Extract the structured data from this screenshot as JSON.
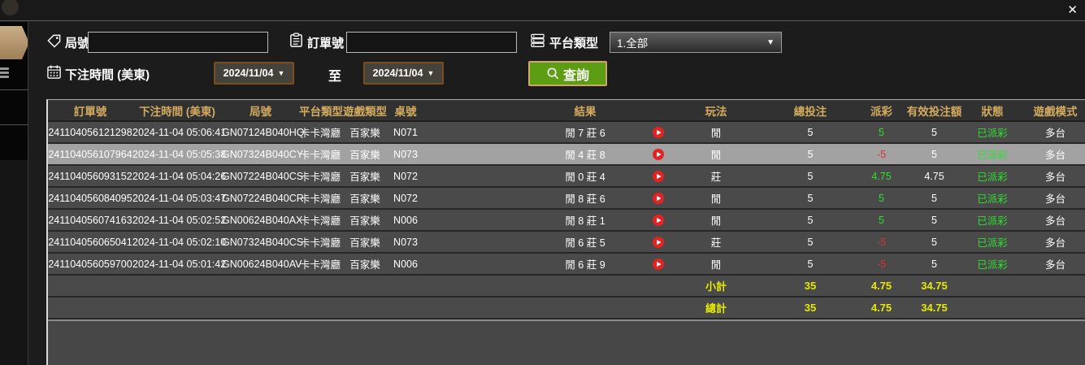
{
  "topbar": {
    "close_label": "✕"
  },
  "filters": {
    "round_label": "局號",
    "round_value": "",
    "order_label": "訂單號",
    "order_value": "",
    "platform_label": "平台類型",
    "platform_value": "1.全部",
    "time_label": "下注時間 (美東)",
    "date_from": "2024/11/04",
    "to_label": "至",
    "date_to": "2024/11/04",
    "search_label": "查詢",
    "dropdown_arrow": "▼"
  },
  "table": {
    "headers": [
      "訂單號",
      "下注時間 (美東)",
      "局號",
      "平台類型",
      "遊戲類型",
      "桌號",
      "結果",
      "玩法",
      "總投注",
      "派彩",
      "有效投注額",
      "狀態",
      "遊戲模式"
    ],
    "rows": [
      {
        "order": "241104056121298",
        "time": "2024-11-04 05:06:41",
        "round": "GN07124B040HQ",
        "platform": "卡卡灣廳",
        "game_type": "百家樂",
        "table_no": "N071",
        "result": "閒 7 莊 6",
        "play": "閒",
        "bet": "5",
        "payout": "5",
        "valid": "5",
        "status": "已派彩",
        "mode": "多台",
        "selected": false
      },
      {
        "order": "241104056107964",
        "time": "2024-11-04 05:05:38",
        "round": "GN07324B040CY",
        "platform": "卡卡灣廳",
        "game_type": "百家樂",
        "table_no": "N073",
        "result": "閒 4 莊 8",
        "play": "閒",
        "bet": "5",
        "payout": "-5",
        "valid": "5",
        "status": "已派彩",
        "mode": "多台",
        "selected": true
      },
      {
        "order": "241104056093152",
        "time": "2024-11-04 05:04:26",
        "round": "GN07224B040CS",
        "platform": "卡卡灣廳",
        "game_type": "百家樂",
        "table_no": "N072",
        "result": "閒 0 莊 4",
        "play": "莊",
        "bet": "5",
        "payout": "4.75",
        "valid": "4.75",
        "status": "已派彩",
        "mode": "多台",
        "selected": false
      },
      {
        "order": "241104056084095",
        "time": "2024-11-04 05:03:47",
        "round": "GN07224B040CR",
        "platform": "卡卡灣廳",
        "game_type": "百家樂",
        "table_no": "N072",
        "result": "閒 8 莊 6",
        "play": "閒",
        "bet": "5",
        "payout": "5",
        "valid": "5",
        "status": "已派彩",
        "mode": "多台",
        "selected": false
      },
      {
        "order": "241104056074163",
        "time": "2024-11-04 05:02:52",
        "round": "GN00624B040AX",
        "platform": "卡卡灣廳",
        "game_type": "百家樂",
        "table_no": "N006",
        "result": "閒 8 莊 1",
        "play": "閒",
        "bet": "5",
        "payout": "5",
        "valid": "5",
        "status": "已派彩",
        "mode": "多台",
        "selected": false
      },
      {
        "order": "241104056065041",
        "time": "2024-11-04 05:02:10",
        "round": "GN07324B040CS",
        "platform": "卡卡灣廳",
        "game_type": "百家樂",
        "table_no": "N073",
        "result": "閒 6 莊 5",
        "play": "莊",
        "bet": "5",
        "payout": "-5",
        "valid": "5",
        "status": "已派彩",
        "mode": "多台",
        "selected": false
      },
      {
        "order": "241104056059700",
        "time": "2024-11-04 05:01:42",
        "round": "GN00624B040AV",
        "platform": "卡卡灣廳",
        "game_type": "百家樂",
        "table_no": "N006",
        "result": "閒 6 莊 9",
        "play": "閒",
        "bet": "5",
        "payout": "-5",
        "valid": "5",
        "status": "已派彩",
        "mode": "多台",
        "selected": false
      }
    ],
    "subtotal": {
      "label": "小計",
      "bet": "35",
      "payout": "4.75",
      "valid": "34.75"
    },
    "total": {
      "label": "總計",
      "bet": "35",
      "payout": "4.75",
      "valid": "34.75"
    }
  },
  "icons": {
    "round": "tag-icon",
    "order": "clipboard-icon",
    "platform": "list-icon",
    "time": "calendar-icon",
    "search": "search-icon",
    "close": "close-icon",
    "replay": "play-icon"
  },
  "colors": {
    "header_gold": "#d4ab5e",
    "payout_positive": "#2ee12e",
    "payout_negative": "#d83535",
    "status_green": "#2ee12e",
    "totals_yellow": "#e8ea00",
    "search_green": "#5d9d14",
    "date_border_brown": "#7a4f1f",
    "selected_row_gray": "#a2a2a2",
    "sidebar_tan": "#b3946c",
    "row_bg": "#4a4a4a",
    "header_bg": "#313131"
  }
}
